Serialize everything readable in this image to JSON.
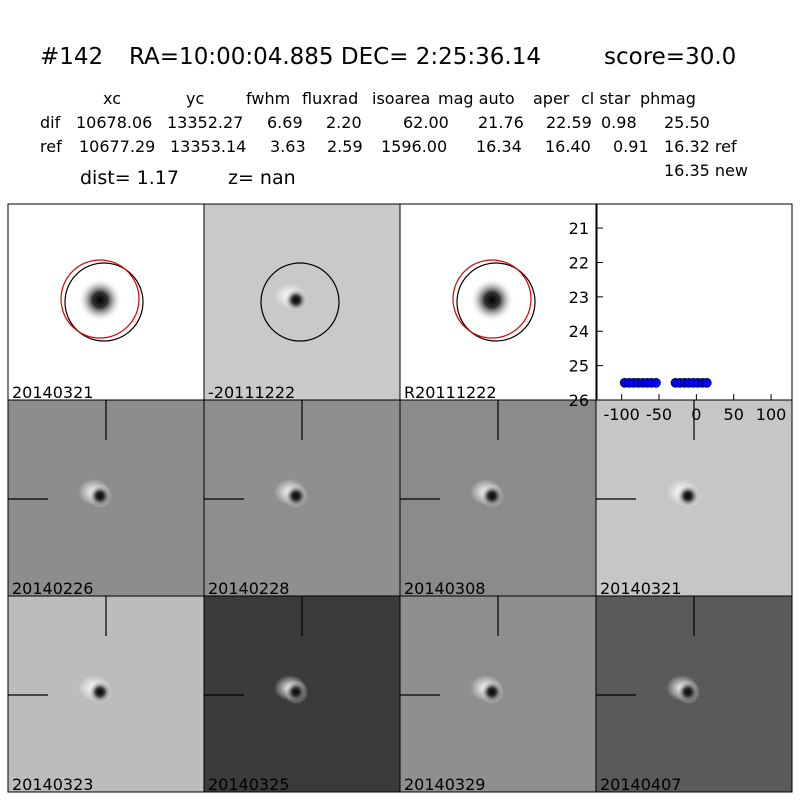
{
  "header": {
    "id": "#142",
    "coords": "RA=10:00:04.885 DEC= 2:25:36.14",
    "score": "score=30.0"
  },
  "table": {
    "columns": [
      "xc",
      "yc",
      "fwhm",
      "fluxrad",
      "isoarea",
      "mag auto",
      "aper",
      "cl star",
      "phmag"
    ],
    "rows": [
      [
        "dif",
        "10678.06",
        "13352.27",
        "6.69",
        "2.20",
        "62.00",
        "21.76",
        "22.59",
        "0.98",
        "25.50"
      ],
      [
        "ref",
        "10677.29",
        "13353.14",
        "3.63",
        "2.59",
        "1596.00",
        "16.34",
        "16.40",
        "0.91",
        "16.32 ref"
      ]
    ],
    "extra": "16.35 new"
  },
  "summary": {
    "dist": "dist=  1.17",
    "z": "z=   nan"
  },
  "panels": [
    {
      "label": "20140321"
    },
    {
      "label": "-20111222"
    },
    {
      "label": "R20111222"
    },
    {
      "label": "20140226"
    },
    {
      "label": "20140228"
    },
    {
      "label": "20140308"
    },
    {
      "label": "20140321",
      "color": "#ff0000"
    },
    {
      "label": "20140323"
    },
    {
      "label": "20140325"
    },
    {
      "label": "20140329"
    },
    {
      "label": "20140407"
    }
  ],
  "chart_data": {
    "type": "scatter",
    "color": "#0000ff",
    "x": [
      -96,
      -90,
      -84,
      -78,
      -72,
      -66,
      -60,
      -54,
      -28,
      -22,
      -16,
      -10,
      -4,
      2,
      8,
      14
    ],
    "values": [
      25.5,
      25.5,
      25.5,
      25.5,
      25.5,
      25.5,
      25.5,
      25.5,
      25.5,
      25.5,
      25.5,
      25.5,
      25.5,
      25.5,
      25.5,
      25.5
    ],
    "xlim": [
      -133,
      128
    ],
    "ylim": [
      26,
      20.3
    ],
    "xticks": [
      -100,
      -50,
      0,
      50,
      100
    ],
    "yticks": [
      21,
      22,
      23,
      24,
      25,
      26
    ]
  }
}
